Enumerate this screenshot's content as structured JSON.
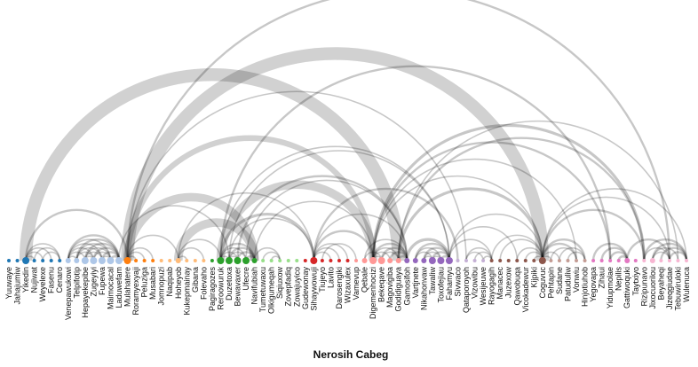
{
  "title": "Nerosih Cabeg",
  "nodes": [
    {
      "name": "Yuuwaye",
      "color": "#1f77b4",
      "size": 2
    },
    {
      "name": "Jahajumiw",
      "color": "#1f77b4",
      "size": 2
    },
    {
      "name": "Yikedin",
      "color": "#1f77b4",
      "size": 4
    },
    {
      "name": "Nujiwat",
      "color": "#1f77b4",
      "size": 2
    },
    {
      "name": "Weyelexe",
      "color": "#1f77b4",
      "size": 2
    },
    {
      "name": "Fasenu",
      "color": "#1f77b4",
      "size": 2
    },
    {
      "name": "Cenaro",
      "color": "#1f77b4",
      "size": 2
    },
    {
      "name": "Venepawukowi",
      "color": "#aec7e8",
      "size": 3
    },
    {
      "name": "Telpifotip",
      "color": "#aec7e8",
      "size": 3
    },
    {
      "name": "Hepayekepibe",
      "color": "#aec7e8",
      "size": 4
    },
    {
      "name": "Zugeyiyi",
      "color": "#aec7e8",
      "size": 4
    },
    {
      "name": "Fupewa",
      "color": "#aec7e8",
      "size": 4
    },
    {
      "name": "Maimocacal",
      "color": "#aec7e8",
      "size": 4
    },
    {
      "name": "Laduwefam",
      "color": "#aec7e8",
      "size": 4
    },
    {
      "name": "Mulahatere",
      "color": "#ff7f0e",
      "size": 4
    },
    {
      "name": "Roramyexyaji",
      "color": "#ff7f0e",
      "size": 2
    },
    {
      "name": "Peluziga",
      "color": "#ff7f0e",
      "size": 2
    },
    {
      "name": "Musabari",
      "color": "#ff7f0e",
      "size": 2
    },
    {
      "name": "Jomnopuzi",
      "color": "#ffbb78",
      "size": 2
    },
    {
      "name": "Naqipab",
      "color": "#ffbb78",
      "size": 2
    },
    {
      "name": "Hoheyob",
      "color": "#ffbb78",
      "size": 3
    },
    {
      "name": "Kukepmainay",
      "color": "#ffbb78",
      "size": 2
    },
    {
      "name": "Gibana",
      "color": "#ffbb78",
      "size": 2
    },
    {
      "name": "Folevaho",
      "color": "#ffbb78",
      "size": 2
    },
    {
      "name": "Pagiragozes",
      "color": "#2ca02c",
      "size": 2
    },
    {
      "name": "Reroowuruk",
      "color": "#2ca02c",
      "size": 4
    },
    {
      "name": "Duzetoxa",
      "color": "#2ca02c",
      "size": 4
    },
    {
      "name": "Bewavaxer",
      "color": "#2ca02c",
      "size": 4
    },
    {
      "name": "Ufecre",
      "color": "#2ca02c",
      "size": 4
    },
    {
      "name": "Navifubiah",
      "color": "#2ca02c",
      "size": 3
    },
    {
      "name": "Tumetuwaxu",
      "color": "#98df8a",
      "size": 2
    },
    {
      "name": "Olkigumeqah",
      "color": "#98df8a",
      "size": 2
    },
    {
      "name": "Siqiuxow",
      "color": "#98df8a",
      "size": 2
    },
    {
      "name": "Zovepfadiq",
      "color": "#98df8a",
      "size": 2
    },
    {
      "name": "Zowajuyico",
      "color": "#98df8a",
      "size": 2
    },
    {
      "name": "Gudewonay",
      "color": "#d62728",
      "size": 2
    },
    {
      "name": "Sihaywowuji",
      "color": "#d62728",
      "size": 4
    },
    {
      "name": "Tiujeyo",
      "color": "#d62728",
      "size": 2
    },
    {
      "name": "Lavito",
      "color": "#d62728",
      "size": 2
    },
    {
      "name": "Darosengiki",
      "color": "#d62728",
      "size": 2
    },
    {
      "name": "Wizaxulex",
      "color": "#d62728",
      "size": 2
    },
    {
      "name": "Vamevup",
      "color": "#ff9896",
      "size": 2
    },
    {
      "name": "Qebale",
      "color": "#ff9896",
      "size": 3
    },
    {
      "name": "Digemenhocizi",
      "color": "#ff9896",
      "size": 4
    },
    {
      "name": "Bekeqave",
      "color": "#ff9896",
      "size": 4
    },
    {
      "name": "Magovigiba",
      "color": "#ff9896",
      "size": 3
    },
    {
      "name": "Godidiguaya",
      "color": "#ff9896",
      "size": 3
    },
    {
      "name": "Gamosifoh",
      "color": "#9467bd",
      "size": 3
    },
    {
      "name": "Vartjnete",
      "color": "#9467bd",
      "size": 3
    },
    {
      "name": "Nikahonvaw",
      "color": "#9467bd",
      "size": 3
    },
    {
      "name": "Tawaliw",
      "color": "#9467bd",
      "size": 4
    },
    {
      "name": "Toxofejiau",
      "color": "#9467bd",
      "size": 4
    },
    {
      "name": "Fahamyu",
      "color": "#9467bd",
      "size": 4
    },
    {
      "name": "Sivwaco",
      "color": "#c5b0d5",
      "size": 2
    },
    {
      "name": "Qataporoyoh",
      "color": "#c5b0d5",
      "size": 2
    },
    {
      "name": "Vizowibu",
      "color": "#c5b0d5",
      "size": 2
    },
    {
      "name": "Wesijeuwe",
      "color": "#c5b0d5",
      "size": 2
    },
    {
      "name": "Rayogagih",
      "color": "#8c564b",
      "size": 2
    },
    {
      "name": "Manacec",
      "color": "#8c564b",
      "size": 2
    },
    {
      "name": "Juzexow",
      "color": "#8c564b",
      "size": 2
    },
    {
      "name": "Qawobuqa",
      "color": "#8c564b",
      "size": 2
    },
    {
      "name": "Vicokadewur",
      "color": "#8c564b",
      "size": 2
    },
    {
      "name": "Kijpiki",
      "color": "#8c564b",
      "size": 2
    },
    {
      "name": "Coguvuc",
      "color": "#8c564b",
      "size": 4
    },
    {
      "name": "Pehtapin",
      "color": "#c49c94",
      "size": 2
    },
    {
      "name": "Sudane",
      "color": "#c49c94",
      "size": 2
    },
    {
      "name": "Patuduliw",
      "color": "#c49c94",
      "size": 2
    },
    {
      "name": "Vonwiu",
      "color": "#c49c94",
      "size": 2
    },
    {
      "name": "Hinjotiuhob",
      "color": "#c49c94",
      "size": 2
    },
    {
      "name": "Yegovapa",
      "color": "#e377c2",
      "size": 2
    },
    {
      "name": "Zihaui",
      "color": "#e377c2",
      "size": 2
    },
    {
      "name": "Yidupmolae",
      "color": "#e377c2",
      "size": 2
    },
    {
      "name": "Nepilis",
      "color": "#e377c2",
      "size": 2
    },
    {
      "name": "Gattiwoquki",
      "color": "#e377c2",
      "size": 3
    },
    {
      "name": "Taytxiyo",
      "color": "#e377c2",
      "size": 2
    },
    {
      "name": "Rizipunavo",
      "color": "#f7b6d2",
      "size": 2
    },
    {
      "name": "Jixocuorilou",
      "color": "#f7b6d2",
      "size": 3
    },
    {
      "name": "Beyaheqi",
      "color": "#f7b6d2",
      "size": 2
    },
    {
      "name": "Jizeqgiudae",
      "color": "#f7b6d2",
      "size": 2
    },
    {
      "name": "Tebuwiruloki",
      "color": "#f7b6d2",
      "size": 2
    },
    {
      "name": "Wulenuca",
      "color": "#f7b6d2",
      "size": 2
    }
  ],
  "links": [
    [
      2,
      14,
      1.5
    ],
    [
      2,
      3,
      1
    ],
    [
      2,
      4,
      1
    ],
    [
      2,
      5,
      1
    ],
    [
      2,
      6,
      1
    ],
    [
      3,
      6,
      1
    ],
    [
      4,
      6,
      1
    ],
    [
      7,
      13,
      1.5
    ],
    [
      8,
      13,
      1.5
    ],
    [
      9,
      13,
      1.5
    ],
    [
      10,
      13,
      1.5
    ],
    [
      11,
      13,
      1.5
    ],
    [
      12,
      13,
      1.5
    ],
    [
      7,
      12,
      1
    ],
    [
      8,
      12,
      1
    ],
    [
      9,
      12,
      1
    ],
    [
      10,
      12,
      1
    ],
    [
      11,
      12,
      1
    ],
    [
      7,
      11,
      1
    ],
    [
      8,
      11,
      1
    ],
    [
      9,
      11,
      1
    ],
    [
      7,
      10,
      1
    ],
    [
      8,
      10,
      1
    ],
    [
      9,
      10,
      1
    ],
    [
      7,
      9,
      1
    ],
    [
      7,
      8,
      1
    ],
    [
      2,
      46,
      9
    ],
    [
      14,
      63,
      9
    ],
    [
      14,
      43,
      4
    ],
    [
      14,
      29,
      6
    ],
    [
      14,
      78,
      1.5
    ],
    [
      14,
      54,
      1
    ],
    [
      14,
      20,
      1
    ],
    [
      14,
      17,
      1
    ],
    [
      14,
      16,
      1
    ],
    [
      14,
      15,
      1
    ],
    [
      13,
      26,
      1
    ],
    [
      20,
      25,
      1
    ],
    [
      20,
      21,
      1
    ],
    [
      20,
      23,
      1
    ],
    [
      20,
      29,
      6
    ],
    [
      20,
      36,
      1
    ],
    [
      25,
      29,
      1.5
    ],
    [
      26,
      29,
      1.5
    ],
    [
      27,
      29,
      1.5
    ],
    [
      28,
      29,
      1.5
    ],
    [
      25,
      28,
      1
    ],
    [
      26,
      28,
      1
    ],
    [
      25,
      27,
      1
    ],
    [
      26,
      27,
      1
    ],
    [
      25,
      26,
      1
    ],
    [
      25,
      36,
      2
    ],
    [
      25,
      43,
      6
    ],
    [
      25,
      52,
      1
    ],
    [
      25,
      71,
      1.5
    ],
    [
      26,
      36,
      1
    ],
    [
      26,
      52,
      1
    ],
    [
      27,
      47,
      1.5
    ],
    [
      28,
      47,
      1
    ],
    [
      29,
      43,
      1
    ],
    [
      29,
      32,
      1
    ],
    [
      30,
      32,
      1
    ],
    [
      31,
      32,
      1
    ],
    [
      36,
      43,
      1.5
    ],
    [
      36,
      53,
      1.5
    ],
    [
      36,
      47,
      1
    ],
    [
      36,
      38,
      1
    ],
    [
      36,
      39,
      1
    ],
    [
      36,
      40,
      1
    ],
    [
      37,
      41,
      1
    ],
    [
      42,
      47,
      1
    ],
    [
      43,
      47,
      1.5
    ],
    [
      44,
      47,
      1.5
    ],
    [
      45,
      47,
      1.5
    ],
    [
      46,
      47,
      1.5
    ],
    [
      43,
      46,
      1
    ],
    [
      44,
      46,
      1
    ],
    [
      43,
      45,
      1
    ],
    [
      42,
      44,
      1
    ],
    [
      43,
      44,
      1
    ],
    [
      46,
      63,
      2
    ],
    [
      43,
      75,
      2
    ],
    [
      46,
      75,
      1.5
    ],
    [
      43,
      67,
      1
    ],
    [
      43,
      71,
      1.5
    ],
    [
      43,
      63,
      1
    ],
    [
      46,
      79,
      1
    ],
    [
      47,
      52,
      2
    ],
    [
      48,
      52,
      1.5
    ],
    [
      49,
      52,
      1.5
    ],
    [
      50,
      52,
      1.5
    ],
    [
      51,
      52,
      1.5
    ],
    [
      48,
      51,
      1
    ],
    [
      49,
      51,
      1
    ],
    [
      50,
      51,
      1
    ],
    [
      48,
      50,
      1
    ],
    [
      49,
      50,
      1
    ],
    [
      52,
      57,
      1
    ],
    [
      52,
      63,
      1
    ],
    [
      52,
      60,
      1
    ],
    [
      54,
      57,
      1
    ],
    [
      55,
      57,
      1
    ],
    [
      56,
      57,
      1
    ],
    [
      54,
      56,
      1
    ],
    [
      57,
      63,
      1
    ],
    [
      58,
      63,
      1
    ],
    [
      60,
      63,
      1
    ],
    [
      61,
      63,
      1
    ],
    [
      62,
      63,
      1
    ],
    [
      63,
      68,
      1.5
    ],
    [
      63,
      67,
      1.5
    ],
    [
      63,
      64,
      1
    ],
    [
      63,
      65,
      1
    ],
    [
      63,
      75,
      1.5
    ],
    [
      63,
      78,
      1
    ],
    [
      63,
      80,
      1
    ],
    [
      64,
      67,
      1
    ],
    [
      65,
      68,
      1
    ],
    [
      66,
      68,
      1
    ],
    [
      69,
      73,
      1.5
    ],
    [
      70,
      73,
      1.5
    ],
    [
      71,
      73,
      1.5
    ],
    [
      72,
      73,
      1.5
    ],
    [
      73,
      78,
      1.5
    ],
    [
      75,
      80,
      1.5
    ],
    [
      76,
      80,
      1.5
    ],
    [
      77,
      80,
      1.5
    ],
    [
      78,
      80,
      1.5
    ],
    [
      75,
      78,
      1
    ],
    [
      76,
      78,
      1
    ],
    [
      76,
      79,
      1
    ]
  ]
}
